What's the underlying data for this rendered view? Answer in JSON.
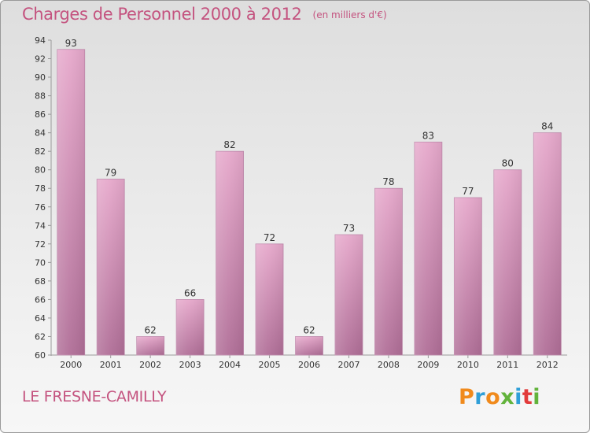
{
  "page": {
    "title": "Charges de Personnel 2000 à 2012",
    "subtitle": "(en milliers d'€)",
    "municipality": "LE FRESNE-CAMILLY",
    "logo": "Proxiti"
  },
  "colors": {
    "accent": "#c4537f",
    "bar_top": "#e6a8cb",
    "bar_bottom": "#b06e97",
    "logo_letters": [
      "#f08a1c",
      "#2f9fd8",
      "#f08a1c",
      "#62b33b",
      "#2f9fd8",
      "#e23b3b",
      "#62b33b"
    ]
  },
  "chart_data": {
    "type": "bar",
    "title": "Charges de Personnel 2000 à 2012",
    "subtitle": "(en milliers d'€)",
    "categories": [
      "2000",
      "2001",
      "2002",
      "2003",
      "2004",
      "2005",
      "2006",
      "2007",
      "2008",
      "2009",
      "2010",
      "2011",
      "2012"
    ],
    "values": [
      93,
      79,
      62,
      66,
      82,
      72,
      62,
      73,
      78,
      83,
      77,
      80,
      84
    ],
    "ylim": [
      60,
      94
    ],
    "yticks": [
      60,
      62,
      64,
      66,
      68,
      70,
      72,
      74,
      76,
      78,
      80,
      82,
      84,
      86,
      88,
      90,
      92,
      94
    ],
    "grid": false,
    "legend": "none"
  }
}
